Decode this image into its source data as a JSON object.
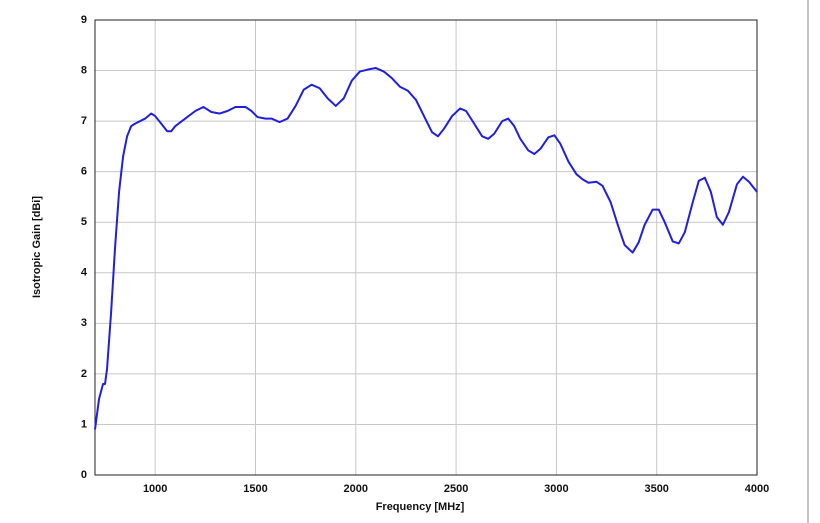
{
  "chart_data": {
    "type": "line",
    "xlabel": "Frequency [MHz]",
    "ylabel": "Isotropic Gain [dBi]",
    "color": "#1f1fe0",
    "grid": true,
    "xlim": [
      700,
      4000
    ],
    "ylim": [
      0,
      9
    ],
    "xticks": [
      1000,
      1500,
      2000,
      2500,
      3000,
      3500,
      4000
    ],
    "yticks": [
      0,
      1,
      2,
      3,
      4,
      5,
      6,
      7,
      8,
      9
    ],
    "x": [
      700,
      720,
      740,
      750,
      760,
      780,
      800,
      820,
      840,
      860,
      880,
      900,
      950,
      980,
      1000,
      1030,
      1060,
      1080,
      1100,
      1150,
      1200,
      1240,
      1280,
      1320,
      1360,
      1400,
      1450,
      1480,
      1510,
      1550,
      1580,
      1620,
      1660,
      1700,
      1740,
      1780,
      1820,
      1860,
      1900,
      1940,
      1980,
      2020,
      2060,
      2100,
      2140,
      2180,
      2220,
      2260,
      2300,
      2340,
      2380,
      2410,
      2440,
      2480,
      2520,
      2550,
      2590,
      2630,
      2660,
      2690,
      2730,
      2760,
      2790,
      2820,
      2860,
      2890,
      2920,
      2960,
      2990,
      3020,
      3060,
      3100,
      3130,
      3160,
      3200,
      3230,
      3270,
      3310,
      3340,
      3380,
      3410,
      3440,
      3480,
      3510,
      3540,
      3580,
      3610,
      3640,
      3680,
      3710,
      3740,
      3770,
      3800,
      3830,
      3860,
      3900,
      3930,
      3960,
      4000
    ],
    "values": [
      0.9,
      1.5,
      1.8,
      1.8,
      2.1,
      3.2,
      4.5,
      5.6,
      6.3,
      6.7,
      6.9,
      6.95,
      7.05,
      7.15,
      7.1,
      6.95,
      6.8,
      6.8,
      6.9,
      7.05,
      7.2,
      7.28,
      7.18,
      7.15,
      7.2,
      7.28,
      7.28,
      7.2,
      7.08,
      7.05,
      7.05,
      6.98,
      7.05,
      7.3,
      7.62,
      7.72,
      7.65,
      7.45,
      7.3,
      7.45,
      7.8,
      7.98,
      8.02,
      8.05,
      7.98,
      7.85,
      7.68,
      7.6,
      7.42,
      7.1,
      6.78,
      6.7,
      6.85,
      7.1,
      7.25,
      7.2,
      6.95,
      6.7,
      6.65,
      6.75,
      7.0,
      7.05,
      6.9,
      6.65,
      6.42,
      6.35,
      6.45,
      6.68,
      6.72,
      6.55,
      6.2,
      5.95,
      5.85,
      5.78,
      5.8,
      5.72,
      5.4,
      4.9,
      4.55,
      4.4,
      4.6,
      4.95,
      5.25,
      5.25,
      5.0,
      4.62,
      4.58,
      4.8,
      5.4,
      5.82,
      5.88,
      5.6,
      5.1,
      4.95,
      5.2,
      5.75,
      5.9,
      5.8,
      5.6
    ]
  }
}
